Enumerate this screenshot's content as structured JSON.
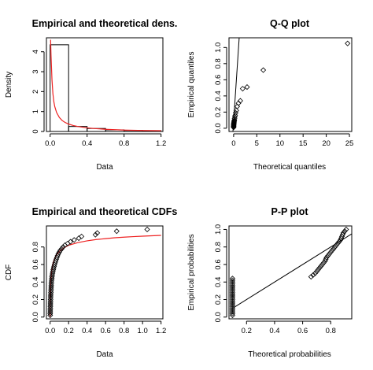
{
  "chart_data": [
    {
      "type": "histogram-density",
      "title": "Empirical and theoretical dens.",
      "xlabel": "Data",
      "ylabel": "Density",
      "xlim": [
        -0.04,
        1.22
      ],
      "ylim": [
        0,
        4.7
      ],
      "xticks": [
        0.0,
        0.4,
        0.8,
        1.2
      ],
      "xtick_labels": [
        "0.0",
        "0.4",
        "0.8",
        "1.2"
      ],
      "yticks": [
        0,
        1,
        2,
        3,
        4
      ],
      "ytick_labels": [
        "0",
        "1",
        "2",
        "3",
        "4"
      ],
      "bars": [
        {
          "x0": 0.0,
          "x1": 0.2,
          "density": 4.35
        },
        {
          "x0": 0.2,
          "x1": 0.4,
          "density": 0.25
        },
        {
          "x0": 0.4,
          "x1": 0.6,
          "density": 0.15
        },
        {
          "x0": 0.6,
          "x1": 0.8,
          "density": 0.08
        },
        {
          "x0": 0.8,
          "x1": 1.0,
          "density": 0.05
        },
        {
          "x0": 1.0,
          "x1": 1.2,
          "density": 0.04
        }
      ],
      "curve": {
        "color": "#ee2222",
        "x": [
          0.005,
          0.01,
          0.02,
          0.03,
          0.04,
          0.05,
          0.07,
          0.1,
          0.13,
          0.16,
          0.2,
          0.25,
          0.3,
          0.4,
          0.5,
          0.6,
          0.7,
          0.8,
          0.9,
          1.0,
          1.1,
          1.2
        ],
        "y": [
          4.6,
          3.8,
          2.6,
          1.9,
          1.5,
          1.25,
          0.95,
          0.7,
          0.55,
          0.46,
          0.37,
          0.3,
          0.25,
          0.18,
          0.14,
          0.11,
          0.09,
          0.07,
          0.06,
          0.05,
          0.045,
          0.04
        ]
      }
    },
    {
      "type": "scatter",
      "title": "Q-Q plot",
      "xlabel": "Theoretical quantiles",
      "ylabel": "Empirical quantiles",
      "xlim": [
        -1,
        25.5
      ],
      "ylim": [
        -0.04,
        1.12
      ],
      "xticks": [
        0,
        5,
        10,
        15,
        20,
        25
      ],
      "xtick_labels": [
        "0",
        "5",
        "10",
        "15",
        "20",
        "25"
      ],
      "yticks": [
        0.0,
        0.2,
        0.4,
        0.6,
        0.8,
        1.0
      ],
      "ytick_labels": [
        "0.0",
        "0.2",
        "0.4",
        "0.6",
        "0.8",
        "1.0"
      ],
      "reference_line": {
        "x": [
          -0.15,
          1.2
        ],
        "y": [
          -0.04,
          1.12
        ]
      },
      "points": {
        "x": [
          0.0,
          0.0,
          0.0,
          0.01,
          0.01,
          0.02,
          0.03,
          0.04,
          0.05,
          0.07,
          0.09,
          0.12,
          0.16,
          0.2,
          0.26,
          0.34,
          0.44,
          0.58,
          0.78,
          1.05,
          1.45,
          1.95,
          2.9,
          6.4,
          24.6
        ],
        "y": [
          0.01,
          0.02,
          0.02,
          0.03,
          0.04,
          0.04,
          0.05,
          0.06,
          0.06,
          0.07,
          0.08,
          0.09,
          0.1,
          0.12,
          0.14,
          0.16,
          0.19,
          0.22,
          0.27,
          0.31,
          0.34,
          0.49,
          0.51,
          0.72,
          1.05
        ]
      }
    },
    {
      "type": "line",
      "title": "Empirical and theoretical CDFs",
      "xlabel": "Data",
      "ylabel": "CDF",
      "xlim": [
        -0.04,
        1.22
      ],
      "ylim": [
        -0.02,
        1.04
      ],
      "xticks": [
        0.0,
        0.2,
        0.4,
        0.6,
        0.8,
        1.0,
        1.2
      ],
      "xtick_labels": [
        "0.0",
        "0.2",
        "0.4",
        "0.6",
        "0.8",
        "1.0",
        "1.2"
      ],
      "yticks": [
        0.0,
        0.2,
        0.4,
        0.6,
        0.8
      ],
      "ytick_labels": [
        "0.0",
        "0.2",
        "0.4",
        "0.6",
        "0.8"
      ],
      "empirical_points": {
        "x": [
          0.001,
          0.001,
          0.002,
          0.002,
          0.003,
          0.003,
          0.004,
          0.004,
          0.005,
          0.005,
          0.006,
          0.006,
          0.007,
          0.008,
          0.009,
          0.01,
          0.011,
          0.012,
          0.013,
          0.014,
          0.016,
          0.018,
          0.02,
          0.023,
          0.026,
          0.03,
          0.034,
          0.038,
          0.043,
          0.048,
          0.054,
          0.06,
          0.066,
          0.073,
          0.08,
          0.088,
          0.098,
          0.11,
          0.125,
          0.14,
          0.16,
          0.19,
          0.22,
          0.26,
          0.31,
          0.34,
          0.49,
          0.51,
          0.72,
          1.05
        ],
        "y": [
          0.02,
          0.04,
          0.06,
          0.08,
          0.1,
          0.12,
          0.14,
          0.16,
          0.18,
          0.2,
          0.22,
          0.24,
          0.26,
          0.28,
          0.3,
          0.32,
          0.34,
          0.36,
          0.38,
          0.4,
          0.42,
          0.44,
          0.46,
          0.48,
          0.5,
          0.52,
          0.54,
          0.56,
          0.58,
          0.6,
          0.62,
          0.64,
          0.66,
          0.68,
          0.7,
          0.72,
          0.74,
          0.76,
          0.78,
          0.8,
          0.82,
          0.84,
          0.86,
          0.88,
          0.9,
          0.92,
          0.94,
          0.96,
          0.98,
          1.0
        ]
      },
      "theoretical_curve": {
        "color": "#ee2222",
        "x": [
          0.0,
          0.005,
          0.01,
          0.02,
          0.03,
          0.05,
          0.07,
          0.1,
          0.15,
          0.2,
          0.3,
          0.4,
          0.5,
          0.6,
          0.7,
          0.8,
          0.9,
          1.0,
          1.1,
          1.2
        ],
        "y": [
          0.0,
          0.35,
          0.45,
          0.55,
          0.61,
          0.67,
          0.71,
          0.75,
          0.79,
          0.82,
          0.85,
          0.87,
          0.885,
          0.895,
          0.905,
          0.912,
          0.918,
          0.923,
          0.928,
          0.932
        ]
      }
    },
    {
      "type": "scatter",
      "title": "P-P plot",
      "xlabel": "Theoretical probabilities",
      "ylabel": "Empirical probabilities",
      "xlim": [
        0.075,
        0.95
      ],
      "ylim": [
        -0.02,
        1.04
      ],
      "xticks": [
        0.2,
        0.4,
        0.6,
        0.8
      ],
      "xtick_labels": [
        "0.2",
        "0.4",
        "0.6",
        "0.8"
      ],
      "yticks": [
        0.0,
        0.2,
        0.4,
        0.6,
        0.8,
        1.0
      ],
      "ytick_labels": [
        "0.0",
        "0.2",
        "0.4",
        "0.6",
        "0.8",
        "1.0"
      ],
      "reference_line": {
        "x": [
          0.1,
          0.95
        ],
        "y": [
          0.1,
          0.95
        ]
      },
      "points": {
        "x": [
          0.1,
          0.1,
          0.1,
          0.1,
          0.1,
          0.1,
          0.1,
          0.1,
          0.1,
          0.1,
          0.1,
          0.1,
          0.1,
          0.1,
          0.1,
          0.1,
          0.1,
          0.1,
          0.1,
          0.1,
          0.1,
          0.1,
          0.66,
          0.675,
          0.69,
          0.7,
          0.71,
          0.72,
          0.73,
          0.74,
          0.75,
          0.76,
          0.765,
          0.77,
          0.78,
          0.79,
          0.8,
          0.81,
          0.82,
          0.83,
          0.84,
          0.85,
          0.86,
          0.87,
          0.875,
          0.88,
          0.885,
          0.89,
          0.9,
          0.91
        ],
        "y": [
          0.02,
          0.04,
          0.06,
          0.08,
          0.1,
          0.12,
          0.14,
          0.16,
          0.18,
          0.2,
          0.22,
          0.24,
          0.26,
          0.28,
          0.3,
          0.32,
          0.34,
          0.36,
          0.38,
          0.4,
          0.42,
          0.44,
          0.46,
          0.48,
          0.5,
          0.52,
          0.54,
          0.56,
          0.58,
          0.6,
          0.62,
          0.64,
          0.66,
          0.68,
          0.7,
          0.72,
          0.74,
          0.76,
          0.78,
          0.8,
          0.82,
          0.84,
          0.86,
          0.88,
          0.9,
          0.92,
          0.94,
          0.96,
          0.98,
          1.0
        ]
      }
    }
  ]
}
